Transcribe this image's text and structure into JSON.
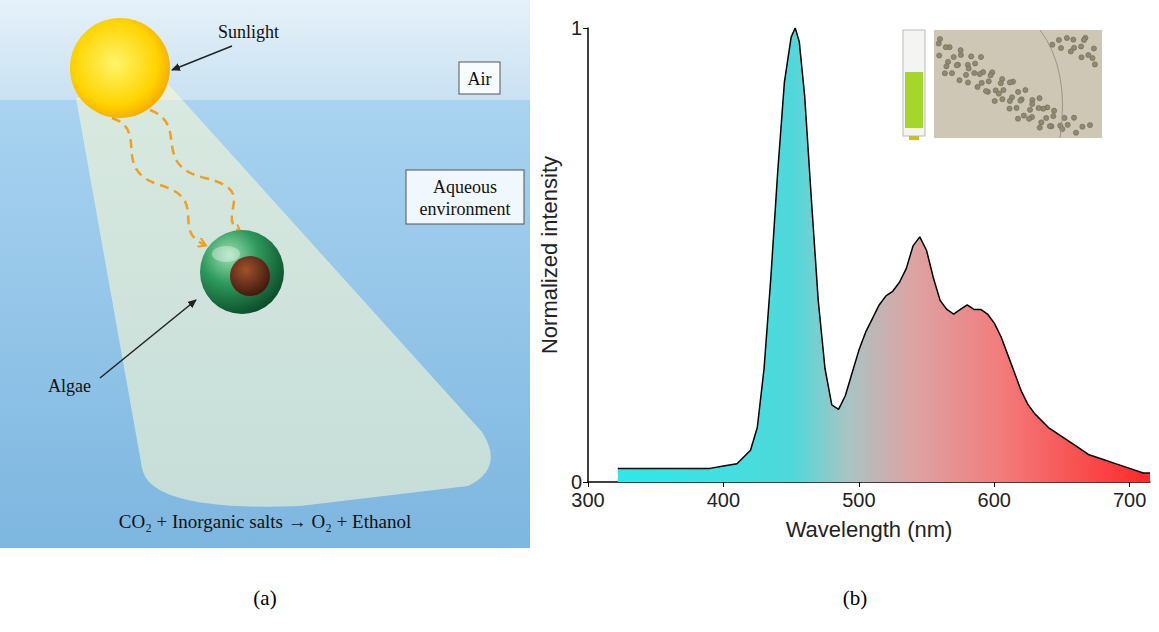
{
  "diagram": {
    "label": "(a)",
    "sun_label": "Sunlight",
    "regions": [
      "Air",
      "Aqueous environment"
    ],
    "cell_label": "Algae",
    "reaction": "CO₂ + Inorganic salts → O₂ + Ethanol"
  },
  "chart_label": "(b)",
  "chart_data": {
    "type": "line",
    "xlabel": "Wavelength (nm)",
    "ylabel": "Normalized intensity",
    "x": [
      322,
      330,
      350,
      370,
      390,
      400,
      410,
      420,
      425,
      430,
      435,
      440,
      445,
      450,
      453,
      456,
      460,
      465,
      470,
      475,
      480,
      485,
      490,
      495,
      500,
      505,
      510,
      515,
      520,
      525,
      530,
      535,
      540,
      545,
      550,
      555,
      560,
      565,
      570,
      575,
      580,
      585,
      590,
      595,
      600,
      605,
      610,
      615,
      620,
      625,
      630,
      640,
      650,
      660,
      670,
      680,
      690,
      700,
      710,
      715
    ],
    "values": [
      0.03,
      0.03,
      0.03,
      0.03,
      0.03,
      0.035,
      0.04,
      0.07,
      0.12,
      0.25,
      0.45,
      0.68,
      0.88,
      0.98,
      1.0,
      0.97,
      0.85,
      0.62,
      0.4,
      0.25,
      0.17,
      0.16,
      0.19,
      0.24,
      0.29,
      0.33,
      0.36,
      0.39,
      0.41,
      0.42,
      0.44,
      0.47,
      0.52,
      0.54,
      0.51,
      0.45,
      0.4,
      0.38,
      0.37,
      0.38,
      0.39,
      0.38,
      0.38,
      0.37,
      0.35,
      0.32,
      0.28,
      0.24,
      0.2,
      0.17,
      0.15,
      0.12,
      0.1,
      0.08,
      0.06,
      0.05,
      0.04,
      0.03,
      0.02,
      0.02
    ],
    "color": "#000000",
    "xlim": [
      300,
      715
    ],
    "ylim": [
      0,
      1
    ],
    "xticks": [
      300,
      400,
      500,
      600,
      700
    ],
    "yticks": [
      0,
      1
    ],
    "grid": false
  }
}
